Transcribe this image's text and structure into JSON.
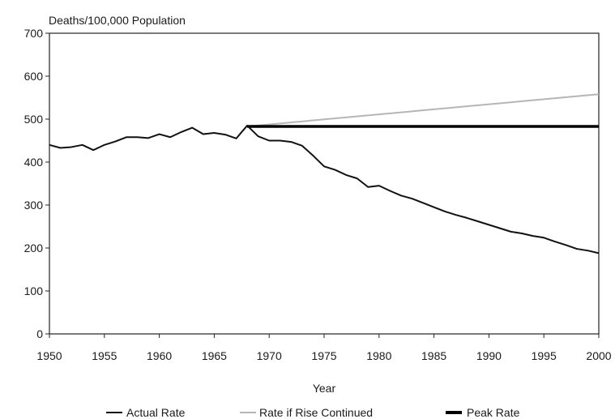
{
  "chart_data": {
    "type": "line",
    "title": "",
    "ylabel": "Deaths/100,000 Population",
    "xlabel": "Year",
    "xlim": [
      1950,
      2000
    ],
    "ylim": [
      0,
      700
    ],
    "x_ticks": [
      1950,
      1955,
      1960,
      1965,
      1970,
      1975,
      1980,
      1985,
      1990,
      1995,
      2000
    ],
    "y_ticks": [
      0,
      100,
      200,
      300,
      400,
      500,
      600,
      700
    ],
    "grid": false,
    "legend_position": "bottom",
    "series": [
      {
        "name": "Actual Rate",
        "color": "#111111",
        "x": [
          1950,
          1951,
          1952,
          1953,
          1954,
          1955,
          1956,
          1957,
          1958,
          1959,
          1960,
          1961,
          1962,
          1963,
          1964,
          1965,
          1966,
          1967,
          1968,
          1969,
          1970,
          1971,
          1972,
          1973,
          1974,
          1975,
          1976,
          1977,
          1978,
          1979,
          1980,
          1981,
          1982,
          1983,
          1984,
          1985,
          1986,
          1987,
          1988,
          1989,
          1990,
          1991,
          1992,
          1993,
          1994,
          1995,
          1996,
          1997,
          1998,
          1999,
          2000
        ],
        "y": [
          440,
          433,
          435,
          440,
          428,
          440,
          448,
          458,
          458,
          456,
          465,
          458,
          470,
          480,
          465,
          468,
          464,
          455,
          485,
          460,
          450,
          450,
          447,
          438,
          415,
          390,
          382,
          370,
          362,
          342,
          345,
          333,
          322,
          315,
          305,
          295,
          285,
          277,
          270,
          262,
          254,
          246,
          238,
          234,
          228,
          224,
          215,
          207,
          198,
          194,
          188
        ]
      },
      {
        "name": "Rate if Rise Continued",
        "color": "#b5b5b5",
        "x": [
          1968,
          2000
        ],
        "y": [
          483,
          558
        ]
      },
      {
        "name": "Peak Rate",
        "color": "#000000",
        "x": [
          1968,
          2000
        ],
        "y": [
          483,
          483
        ]
      }
    ]
  },
  "legend": {
    "items": [
      {
        "label": "Actual Rate"
      },
      {
        "label": "Rate if Rise Continued"
      },
      {
        "label": "Peak Rate"
      }
    ]
  }
}
